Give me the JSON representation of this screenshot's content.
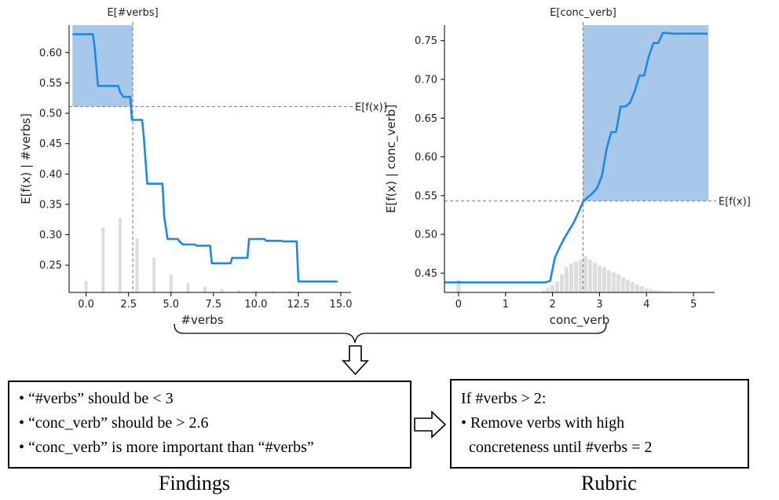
{
  "chart_data": [
    {
      "type": "line",
      "xlabel": "#verbs",
      "ylabel": "E[f(x) | #verbs]",
      "xlim": [
        -1.0,
        15.6
      ],
      "ylim": [
        0.205,
        0.645
      ],
      "xticks": [
        0.0,
        2.5,
        5.0,
        7.5,
        10.0,
        12.5,
        15.0
      ],
      "xtick_labels": [
        "0.0",
        "2.5",
        "5.0",
        "7.5",
        "10.0",
        "12.5",
        "15.0"
      ],
      "yticks": [
        0.25,
        0.3,
        0.35,
        0.4,
        0.45,
        0.5,
        0.55,
        0.6
      ],
      "ytick_labels": [
        "0.25",
        "0.30",
        "0.35",
        "0.40",
        "0.45",
        "0.50",
        "0.55",
        "0.60"
      ],
      "expected_x": 2.75,
      "expected_x_label": "E[#verbs]",
      "expected_y": 0.511,
      "expected_y_label": "E[f(x)]",
      "highlight": {
        "x": [
          -0.8,
          2.75
        ],
        "y": [
          0.511,
          0.645
        ]
      },
      "series": [
        {
          "x": [
            -0.8,
            0.4,
            0.5,
            0.7,
            1.9,
            2.0,
            2.2,
            2.6,
            2.7,
            3.3,
            3.4,
            3.6,
            4.5,
            4.6,
            4.8,
            5.4,
            5.5,
            5.7,
            6.4,
            6.5,
            7.3,
            7.4,
            8.5,
            8.6,
            9.5,
            9.6,
            10.5,
            10.6,
            11.5,
            11.6,
            12.4,
            12.5,
            14.8
          ],
          "y": [
            0.63,
            0.63,
            0.61,
            0.545,
            0.545,
            0.535,
            0.527,
            0.527,
            0.489,
            0.489,
            0.46,
            0.384,
            0.384,
            0.33,
            0.293,
            0.293,
            0.289,
            0.284,
            0.284,
            0.282,
            0.282,
            0.253,
            0.253,
            0.262,
            0.262,
            0.293,
            0.293,
            0.29,
            0.29,
            0.289,
            0.289,
            0.223,
            0.223
          ],
          "color": "#1e88e5"
        }
      ],
      "histogram": {
        "x": [
          0.0,
          1.0,
          2.0,
          3.0,
          4.0,
          5.0,
          6.0,
          7.0,
          8.0,
          9.0,
          10.0,
          11.0,
          12.0
        ],
        "density": [
          0.047,
          0.27,
          0.31,
          0.225,
          0.145,
          0.075,
          0.04,
          0.024,
          0.014,
          0.01,
          0.008,
          0.006,
          0.005
        ],
        "color": "#dddddd"
      }
    },
    {
      "type": "line",
      "xlabel": "conc_verb",
      "ylabel": "E[f(x) | conc_verb]",
      "xlim": [
        -0.3,
        5.45
      ],
      "ylim": [
        0.425,
        0.77
      ],
      "xticks": [
        0,
        1,
        2,
        3,
        4,
        5
      ],
      "xtick_labels": [
        "0",
        "1",
        "2",
        "3",
        "4",
        "5"
      ],
      "yticks": [
        0.45,
        0.5,
        0.55,
        0.6,
        0.65,
        0.7,
        0.75
      ],
      "ytick_labels": [
        "0.45",
        "0.50",
        "0.55",
        "0.60",
        "0.65",
        "0.70",
        "0.75"
      ],
      "expected_x": 2.65,
      "expected_x_label": "E[conc_verb]",
      "expected_y": 0.543,
      "expected_y_label": "E[f(x)]",
      "highlight": {
        "x": [
          2.65,
          5.32
        ],
        "y": [
          0.543,
          0.77
        ]
      },
      "series": [
        {
          "x": [
            -0.3,
            1.85,
            1.95,
            2.05,
            2.15,
            2.25,
            2.35,
            2.45,
            2.55,
            2.65,
            2.75,
            2.85,
            2.95,
            3.05,
            3.15,
            3.25,
            3.35,
            3.45,
            3.55,
            3.65,
            3.75,
            3.85,
            3.95,
            4.05,
            4.15,
            4.25,
            4.35,
            4.45,
            4.55,
            4.65,
            5.3
          ],
          "y": [
            0.438,
            0.438,
            0.44,
            0.47,
            0.483,
            0.495,
            0.505,
            0.515,
            0.528,
            0.542,
            0.548,
            0.553,
            0.56,
            0.575,
            0.61,
            0.632,
            0.632,
            0.665,
            0.665,
            0.67,
            0.685,
            0.705,
            0.705,
            0.73,
            0.747,
            0.747,
            0.76,
            0.76,
            0.759,
            0.759,
            0.759
          ],
          "color": "#1e88e5"
        }
      ],
      "histogram": {
        "x": [
          0.0,
          1.8,
          1.9,
          2.0,
          2.1,
          2.2,
          2.3,
          2.4,
          2.5,
          2.6,
          2.7,
          2.8,
          2.9,
          3.0,
          3.1,
          3.2,
          3.3,
          3.4,
          3.5,
          3.6,
          3.7,
          3.8,
          3.9,
          4.0,
          4.1,
          4.2,
          4.3,
          4.4,
          4.5
        ],
        "density": [
          0.035,
          0.005,
          0.012,
          0.02,
          0.03,
          0.05,
          0.07,
          0.08,
          0.085,
          0.09,
          0.1,
          0.09,
          0.082,
          0.075,
          0.07,
          0.062,
          0.055,
          0.05,
          0.042,
          0.035,
          0.028,
          0.022,
          0.017,
          0.012,
          0.009,
          0.006,
          0.004,
          0.003,
          0.002
        ],
        "color": "#dddddd"
      }
    }
  ],
  "findings": {
    "lines": [
      "• “#verbs” should be < 3",
      "• “conc_verb” should be > 2.6",
      "• “conc_verb” is more important than “#verbs”"
    ],
    "caption": "Findings"
  },
  "rubric": {
    "lines": [
      "If #verbs > 2:",
      "• Remove verbs with high",
      "  concreteness until #verbs = 2"
    ],
    "caption": "Rubric"
  },
  "icons": {
    "down_arrow": "hollow-down-arrow-icon",
    "right_arrow": "hollow-right-arrow-icon",
    "brace": "curly-brace-icon"
  }
}
